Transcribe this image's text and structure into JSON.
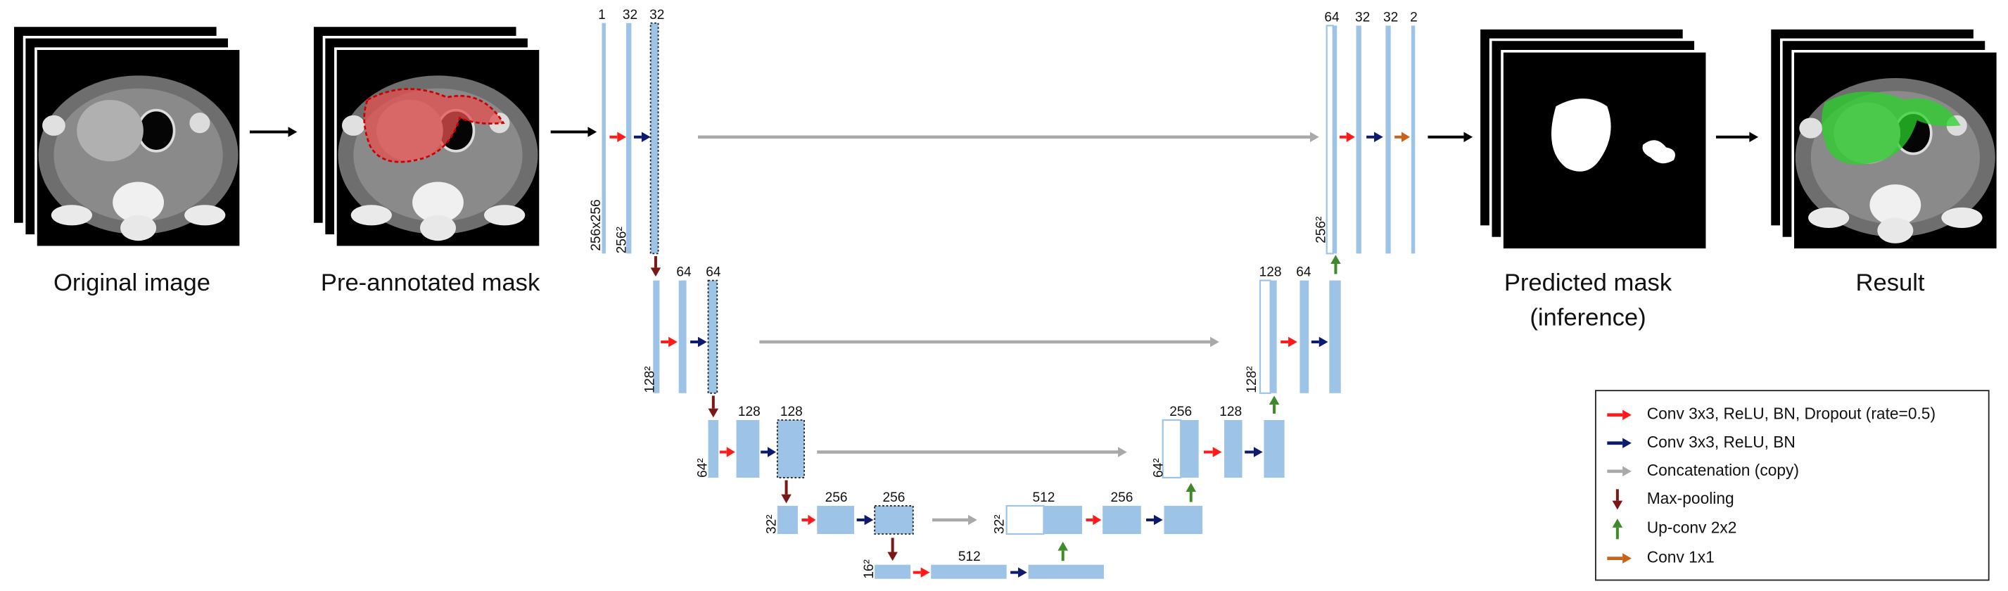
{
  "images": [
    {
      "caption": "Original image"
    },
    {
      "caption": "Pre-annotated mask"
    },
    {
      "caption_lines": [
        "Predicted mask",
        "(inference)"
      ]
    },
    {
      "caption": "Result"
    }
  ],
  "network": {
    "channel_labels": [
      "1",
      "32",
      "32",
      "64",
      "32",
      "32",
      "2",
      "64",
      "64",
      "128",
      "64",
      "128",
      "128",
      "256",
      "128",
      "256",
      "256",
      "512",
      "256",
      "512"
    ],
    "size_labels": [
      "256x256",
      "256²",
      "256²",
      "128²",
      "128²",
      "64²",
      "64²",
      "32²",
      "32²",
      "16²"
    ]
  },
  "legend": [
    {
      "label": "Conv 3x3, ReLU, BN, Dropout (rate=0.5)"
    },
    {
      "label": "Conv 3x3, ReLU, BN"
    },
    {
      "label": "Concatenation (copy)"
    },
    {
      "label": "Max-pooling"
    },
    {
      "label": "Up-conv 2x2"
    },
    {
      "label": "Conv 1x1"
    }
  ]
}
